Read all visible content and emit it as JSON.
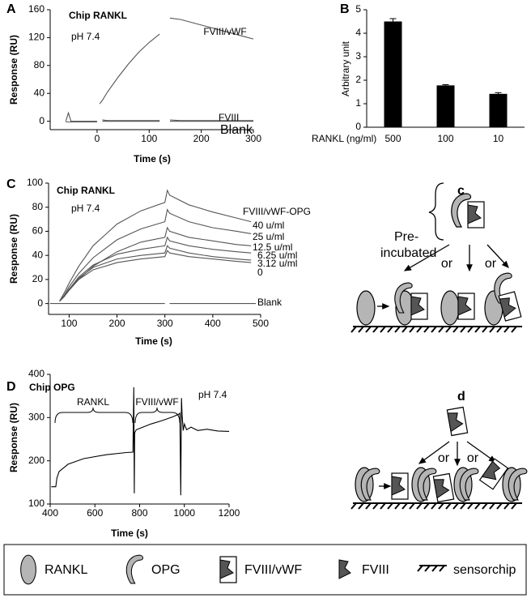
{
  "chart_data": [
    {
      "type": "line",
      "panel": "A",
      "title": "Chip RANKL",
      "annotations": [
        "pH 7.4"
      ],
      "xlabel": "Time (s)",
      "ylabel": "Response (RU)",
      "xlim": [
        -90,
        300
      ],
      "ylim": [
        -12,
        160
      ],
      "xticks": [
        0,
        100,
        200,
        300
      ],
      "yticks": [
        0,
        40,
        80,
        120,
        160
      ],
      "x": [
        -60,
        -55,
        -50,
        -40,
        -20,
        0,
        5,
        10,
        20,
        40,
        60,
        80,
        100,
        120,
        130,
        140,
        160,
        200,
        240,
        280,
        300
      ],
      "series": [
        {
          "name": "FVIII/vWF",
          "color": "#555555",
          "values": [
            null,
            null,
            null,
            null,
            null,
            null,
            25,
            30,
            42,
            63,
            82,
            99,
            113,
            125,
            null,
            148,
            146,
            138,
            130,
            122,
            118
          ]
        },
        {
          "name": "FVIII",
          "color": "#555555",
          "values": [
            0,
            12,
            0,
            0,
            0,
            0,
            null,
            2,
            1,
            1,
            1,
            1,
            1,
            1,
            null,
            2,
            1,
            1,
            1,
            1,
            1
          ]
        },
        {
          "name": "Blank",
          "color": "#555555",
          "values": [
            -1,
            -1,
            -1,
            -1,
            -1,
            -1,
            null,
            0,
            0,
            0,
            0,
            0,
            0,
            0,
            null,
            0,
            0,
            0,
            0,
            0,
            0
          ]
        }
      ]
    },
    {
      "type": "bar",
      "panel": "B",
      "ylabel": "Arbitrary unit",
      "xlabel": "RANKL (ng/ml)",
      "categories": [
        "500",
        "100",
        "10"
      ],
      "values": [
        4.5,
        1.78,
        1.42
      ],
      "errors": [
        0.12,
        0.03,
        0.05
      ],
      "color": "#000000",
      "ylim": [
        0,
        5
      ],
      "yticks": [
        0,
        1,
        2,
        3,
        4,
        5
      ]
    },
    {
      "type": "line",
      "panel": "C",
      "title": "Chip RANKL",
      "annotations": [
        "pH 7.4",
        "FVIII/vWF-OPG"
      ],
      "xlabel": "Time (s)",
      "ylabel": "Response (RU)",
      "xlim": [
        57,
        500
      ],
      "ylim": [
        -9,
        100
      ],
      "xticks": [
        100,
        200,
        300,
        400,
        500
      ],
      "yticks": [
        0,
        20,
        40,
        60,
        80,
        100
      ],
      "x": [
        60,
        80,
        90,
        100,
        120,
        150,
        200,
        250,
        300,
        305,
        310,
        350,
        400,
        450,
        480,
        490
      ],
      "series": [
        {
          "name": "40 u/ml",
          "color": "#555555",
          "values": [
            null,
            2,
            9,
            17,
            31,
            48,
            66,
            77,
            84,
            94,
            90,
            82,
            76,
            71,
            68,
            null
          ]
        },
        {
          "name": "25 u/ml",
          "color": "#555555",
          "values": [
            null,
            2,
            7,
            14,
            25,
            38,
            53,
            62,
            68,
            78,
            75,
            68,
            63,
            60,
            58,
            null
          ]
        },
        {
          "name": "12.5 u/ml",
          "color": "#555555",
          "values": [
            null,
            2,
            6,
            11,
            20,
            31,
            43,
            51,
            55,
            63,
            60,
            55,
            52,
            49,
            48,
            null
          ]
        },
        {
          "name": "6.25 u/ml",
          "color": "#555555",
          "values": [
            null,
            2,
            6,
            12,
            22,
            32,
            41,
            45,
            48,
            55,
            52,
            48,
            45,
            43,
            42,
            null
          ]
        },
        {
          "name": "3.12 u/ml",
          "color": "#555555",
          "values": [
            null,
            2,
            6,
            12,
            21,
            30,
            37,
            40,
            42,
            48,
            46,
            42,
            39,
            37,
            36,
            null
          ]
        },
        {
          "name": "0",
          "color": "#555555",
          "values": [
            null,
            2,
            6,
            12,
            20,
            28,
            34,
            37,
            39,
            44,
            42,
            39,
            37,
            35,
            34,
            null
          ]
        },
        {
          "name": "Blank",
          "color": "#555555",
          "values": [
            0,
            0,
            0,
            0,
            0,
            0,
            0,
            0,
            0,
            null,
            0,
            0,
            0,
            0,
            0,
            0
          ]
        }
      ]
    },
    {
      "type": "line",
      "panel": "D",
      "title": "Chip OPG",
      "annotations": [
        "pH 7.4",
        "RANKL",
        "FVIII/vWF"
      ],
      "xlabel": "Time (s)",
      "ylabel": "Response (RU)",
      "xlim": [
        400,
        1200
      ],
      "ylim": [
        100,
        400
      ],
      "xticks": [
        400,
        600,
        800,
        1000,
        1200
      ],
      "yticks": [
        100,
        200,
        300,
        400
      ],
      "x": [
        405,
        425,
        430,
        440,
        480,
        550,
        650,
        740,
        770,
        774,
        776,
        778,
        785,
        800,
        850,
        900,
        950,
        975,
        980,
        984,
        987,
        990,
        995,
        1000,
        1010,
        1030,
        1060,
        1100,
        1150,
        1200
      ],
      "series": [
        {
          "color": "#000000",
          "values": [
            140,
            140,
            160,
            175,
            192,
            205,
            214,
            219,
            220,
            370,
            125,
            265,
            272,
            275,
            285,
            293,
            302,
            308,
            310,
            120,
            345,
            305,
            270,
            285,
            272,
            278,
            270,
            273,
            269,
            268
          ]
        }
      ]
    }
  ],
  "diagram_c": {
    "label": "c",
    "preincubated": [
      "Pre-",
      "incubated"
    ],
    "or": [
      "or",
      "or"
    ]
  },
  "diagram_d": {
    "label": "d",
    "or": [
      "or",
      "or"
    ]
  },
  "legend": {
    "items": [
      "RANKL",
      "OPG",
      "FVIII/vWF",
      "FVIII",
      "sensorchip"
    ]
  }
}
